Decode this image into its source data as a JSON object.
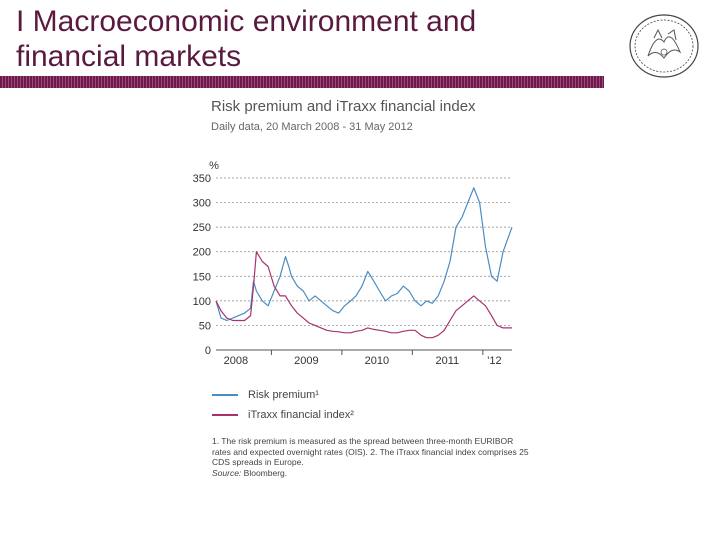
{
  "slide": {
    "title": "I Macroeconomic environment and\nfinancial markets",
    "accent_color": "#5a1a3f",
    "logo_icon": "bank-seal-icon"
  },
  "chart_data": {
    "type": "line",
    "title": "Risk premium and iTraxx financial index",
    "subtitle": "Daily data, 20 March 2008 - 31 May 2012",
    "ylabel": "%",
    "ylim": [
      0,
      350
    ],
    "yticks": [
      0,
      50,
      100,
      150,
      200,
      250,
      300,
      350
    ],
    "xlim": [
      "2008-03-20",
      "2012-05-31"
    ],
    "xtick_labels": [
      {
        "label": "2008",
        "position": "2008-07-01"
      },
      {
        "label": "2009",
        "position": "2009-07-01"
      },
      {
        "label": "2010",
        "position": "2010-07-01"
      },
      {
        "label": "2011",
        "position": "2011-07-01"
      },
      {
        "label": "'12",
        "position": "2012-03-01"
      }
    ],
    "grid": true,
    "legend_placement": "bottom",
    "series": [
      {
        "name": "Risk premium¹",
        "color": "#4a8cc4",
        "points": [
          [
            "2008-03-20",
            100
          ],
          [
            "2008-04-15",
            65
          ],
          [
            "2008-05-15",
            60
          ],
          [
            "2008-06-15",
            65
          ],
          [
            "2008-07-15",
            70
          ],
          [
            "2008-08-15",
            75
          ],
          [
            "2008-09-15",
            85
          ],
          [
            "2008-09-30",
            140
          ],
          [
            "2008-10-15",
            120
          ],
          [
            "2008-11-15",
            100
          ],
          [
            "2008-12-15",
            90
          ],
          [
            "2009-01-15",
            120
          ],
          [
            "2009-02-15",
            150
          ],
          [
            "2009-03-15",
            190
          ],
          [
            "2009-04-01",
            170
          ],
          [
            "2009-04-15",
            150
          ],
          [
            "2009-05-15",
            130
          ],
          [
            "2009-06-15",
            120
          ],
          [
            "2009-07-15",
            100
          ],
          [
            "2009-08-15",
            110
          ],
          [
            "2009-09-15",
            100
          ],
          [
            "2009-10-15",
            90
          ],
          [
            "2009-11-15",
            80
          ],
          [
            "2009-12-15",
            75
          ],
          [
            "2010-01-15",
            90
          ],
          [
            "2010-02-15",
            100
          ],
          [
            "2010-03-15",
            110
          ],
          [
            "2010-04-15",
            130
          ],
          [
            "2010-05-15",
            160
          ],
          [
            "2010-06-15",
            140
          ],
          [
            "2010-07-15",
            120
          ],
          [
            "2010-08-15",
            100
          ],
          [
            "2010-09-15",
            110
          ],
          [
            "2010-10-15",
            115
          ],
          [
            "2010-11-15",
            130
          ],
          [
            "2010-12-15",
            120
          ],
          [
            "2011-01-15",
            100
          ],
          [
            "2011-02-15",
            90
          ],
          [
            "2011-03-15",
            100
          ],
          [
            "2011-04-15",
            95
          ],
          [
            "2011-05-15",
            110
          ],
          [
            "2011-06-15",
            140
          ],
          [
            "2011-07-15",
            180
          ],
          [
            "2011-08-15",
            250
          ],
          [
            "2011-09-15",
            270
          ],
          [
            "2011-10-15",
            300
          ],
          [
            "2011-11-15",
            330
          ],
          [
            "2011-12-15",
            300
          ],
          [
            "2012-01-15",
            210
          ],
          [
            "2012-02-15",
            150
          ],
          [
            "2012-03-15",
            140
          ],
          [
            "2012-04-15",
            200
          ],
          [
            "2012-05-31",
            250
          ]
        ]
      },
      {
        "name": "iTraxx financial index²",
        "color": "#a8326c",
        "points": [
          [
            "2008-03-20",
            100
          ],
          [
            "2008-04-15",
            80
          ],
          [
            "2008-05-15",
            65
          ],
          [
            "2008-06-15",
            60
          ],
          [
            "2008-07-15",
            60
          ],
          [
            "2008-08-15",
            60
          ],
          [
            "2008-09-15",
            70
          ],
          [
            "2008-09-30",
            130
          ],
          [
            "2008-10-15",
            200
          ],
          [
            "2008-11-15",
            180
          ],
          [
            "2008-12-15",
            170
          ],
          [
            "2009-01-15",
            130
          ],
          [
            "2009-02-15",
            110
          ],
          [
            "2009-03-15",
            110
          ],
          [
            "2009-04-15",
            90
          ],
          [
            "2009-05-15",
            75
          ],
          [
            "2009-06-15",
            65
          ],
          [
            "2009-07-15",
            55
          ],
          [
            "2009-08-15",
            50
          ],
          [
            "2009-09-15",
            45
          ],
          [
            "2009-10-15",
            40
          ],
          [
            "2009-11-15",
            38
          ],
          [
            "2009-12-15",
            37
          ],
          [
            "2010-01-15",
            35
          ],
          [
            "2010-02-15",
            35
          ],
          [
            "2010-03-15",
            38
          ],
          [
            "2010-04-15",
            40
          ],
          [
            "2010-05-15",
            45
          ],
          [
            "2010-06-15",
            42
          ],
          [
            "2010-07-15",
            40
          ],
          [
            "2010-08-15",
            38
          ],
          [
            "2010-09-15",
            35
          ],
          [
            "2010-10-15",
            35
          ],
          [
            "2010-11-15",
            38
          ],
          [
            "2010-12-15",
            40
          ],
          [
            "2011-01-15",
            40
          ],
          [
            "2011-02-15",
            30
          ],
          [
            "2011-03-15",
            25
          ],
          [
            "2011-04-15",
            25
          ],
          [
            "2011-05-15",
            30
          ],
          [
            "2011-06-15",
            40
          ],
          [
            "2011-07-15",
            60
          ],
          [
            "2011-08-15",
            80
          ],
          [
            "2011-09-15",
            90
          ],
          [
            "2011-10-15",
            100
          ],
          [
            "2011-11-15",
            110
          ],
          [
            "2011-12-15",
            100
          ],
          [
            "2012-01-15",
            90
          ],
          [
            "2012-02-15",
            70
          ],
          [
            "2012-03-15",
            50
          ],
          [
            "2012-04-15",
            45
          ],
          [
            "2012-05-31",
            45
          ]
        ]
      }
    ]
  },
  "legend": {
    "items": [
      {
        "label": "Risk premium¹",
        "color": "#4a8cc4"
      },
      {
        "label": "iTraxx financial index²",
        "color": "#a8326c"
      }
    ]
  },
  "footnotes": {
    "note": "1. The risk premium is measured as the spread between three-month EURIBOR rates and expected overnight rates (OIS). 2. The iTraxx financial index comprises 25 CDS spreads in Europe.",
    "source_label": "Source:",
    "source": "Bloomberg."
  }
}
